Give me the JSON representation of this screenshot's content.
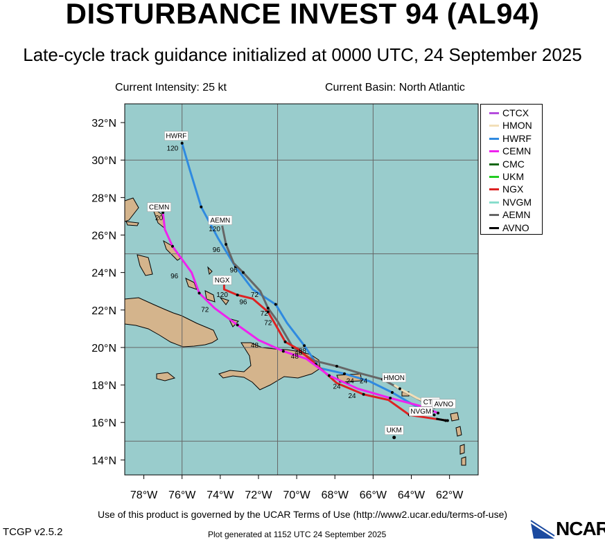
{
  "header": {
    "title": "DISTURBANCE INVEST 94 (AL94)",
    "subtitle": "Late-cycle track guidance initialized at 0000 UTC, 24 September 2025",
    "intensity": "Current Intensity: 25 kt",
    "basin": "Current Basin: North Atlantic"
  },
  "map": {
    "lat_labels": [
      "32°N",
      "30°N",
      "28°N",
      "26°N",
      "24°N",
      "22°N",
      "20°N",
      "18°N",
      "16°N",
      "14°N"
    ],
    "lon_labels": [
      "78°W",
      "76°W",
      "74°W",
      "72°W",
      "70°W",
      "68°W",
      "66°W",
      "64°W",
      "62°W"
    ],
    "extent": {
      "lon_min": -79,
      "lon_max": -60.5,
      "lat_min": 13.2,
      "lat_max": 33
    },
    "ocean_color": "#99cccc",
    "land_color": "#d4b48c",
    "grid_lons": [
      -76,
      -71,
      -66
    ],
    "grid_lats": [
      15,
      20,
      25,
      30
    ]
  },
  "legend": [
    {
      "name": "CTCX",
      "color": "#b44ddd"
    },
    {
      "name": "HMON",
      "color": "#f2dfb8"
    },
    {
      "name": "HWRF",
      "color": "#2f8ae0"
    },
    {
      "name": "CEMN",
      "color": "#ee22ee"
    },
    {
      "name": "CMC",
      "color": "#116611"
    },
    {
      "name": "UKM",
      "color": "#22cc22"
    },
    {
      "name": "NGX",
      "color": "#dd2222"
    },
    {
      "name": "NVGM",
      "color": "#88ddcc"
    },
    {
      "name": "AEMN",
      "color": "#666666"
    },
    {
      "name": "AVNO",
      "color": "#000000"
    }
  ],
  "tracks": [
    {
      "name": "HWRF",
      "color": "#2f8ae0",
      "pts": [
        [
          -62.8,
          16.4
        ],
        [
          -64,
          17
        ],
        [
          -65,
          17.6
        ],
        [
          -66.2,
          18.2
        ],
        [
          -67.5,
          18.6
        ],
        [
          -68.8,
          18.9
        ],
        [
          -69.6,
          20.1
        ],
        [
          -70.5,
          21.3
        ],
        [
          -71.1,
          22.3
        ],
        [
          -72.3,
          23.1
        ],
        [
          -73.2,
          24.3
        ],
        [
          -74.1,
          25.8
        ],
        [
          -75,
          27.5
        ],
        [
          -75.6,
          29.5
        ],
        [
          -76,
          30.9
        ]
      ]
    },
    {
      "name": "AEMN",
      "color": "#666666",
      "pts": [
        [
          -62.8,
          16.8
        ],
        [
          -64.1,
          17.5
        ],
        [
          -65.5,
          18.3
        ],
        [
          -66.6,
          18.6
        ],
        [
          -67.9,
          19
        ],
        [
          -69.1,
          19.3
        ],
        [
          -70.2,
          20
        ],
        [
          -71,
          21.4
        ],
        [
          -71.5,
          22.1
        ],
        [
          -71.9,
          23
        ],
        [
          -72.8,
          24
        ],
        [
          -73.3,
          24.5
        ],
        [
          -73.7,
          25.5
        ],
        [
          -73.9,
          26.5
        ]
      ]
    },
    {
      "name": "NGX",
      "color": "#dd2222",
      "pts": [
        [
          -62.1,
          16.1
        ],
        [
          -62.8,
          16.2
        ],
        [
          -64.1,
          16.4
        ],
        [
          -65.2,
          17.2
        ],
        [
          -66.5,
          17.5
        ],
        [
          -67.9,
          18.1
        ],
        [
          -69,
          19.1
        ],
        [
          -69.9,
          19.9
        ],
        [
          -70.6,
          20.3
        ],
        [
          -71.1,
          21.2
        ],
        [
          -71.5,
          21.9
        ],
        [
          -72.3,
          22.6
        ],
        [
          -73.1,
          22.8
        ],
        [
          -73.8,
          23.1
        ],
        [
          -73.8,
          23.4
        ]
      ]
    },
    {
      "name": "CEMN",
      "color": "#ee22ee",
      "pts": [
        [
          -62.6,
          16.5
        ],
        [
          -63.6,
          16.9
        ],
        [
          -65.1,
          17.3
        ],
        [
          -66.8,
          17.8
        ],
        [
          -68.3,
          18.5
        ],
        [
          -69.5,
          19.4
        ],
        [
          -70.7,
          19.8
        ],
        [
          -72,
          20.4
        ],
        [
          -73.1,
          21.2
        ],
        [
          -74.3,
          22.1
        ],
        [
          -75.1,
          22.9
        ],
        [
          -75.5,
          24
        ],
        [
          -76.5,
          25.4
        ],
        [
          -76.9,
          26.3
        ],
        [
          -77,
          27.2
        ]
      ]
    },
    {
      "name": "AVNO",
      "color": "#000000",
      "pts": [
        [
          -62.2,
          16.1
        ],
        [
          -62.7,
          16.2
        ]
      ]
    },
    {
      "name": "CTCX",
      "color": "#b44ddd",
      "pts": [
        [
          -62.8,
          16.8
        ],
        [
          -63.3,
          16.9
        ]
      ]
    },
    {
      "name": "HMON",
      "color": "#f2dfb8",
      "pts": [
        [
          -62.8,
          16.9
        ],
        [
          -63.7,
          17.3
        ],
        [
          -64.6,
          17.8
        ],
        [
          -64.9,
          18
        ]
      ]
    },
    {
      "name": "NVGM",
      "color": "#88ddcc",
      "pts": [
        [
          -62.9,
          16.6
        ],
        [
          -63.3,
          16.6
        ]
      ]
    }
  ],
  "track_labels": [
    {
      "text": "HWRF",
      "lon": -76.3,
      "lat": 31.2
    },
    {
      "text": "CEMN",
      "lon": -77.2,
      "lat": 27.4
    },
    {
      "text": "AEMN",
      "lon": -74,
      "lat": 26.7
    },
    {
      "text": "NGX",
      "lon": -73.9,
      "lat": 23.5
    },
    {
      "text": "HMON",
      "lon": -64.9,
      "lat": 18.3
    },
    {
      "text": "CTC",
      "lon": -63.0,
      "lat": 17.0
    },
    {
      "text": "AVNO",
      "lon": -62.3,
      "lat": 16.9
    },
    {
      "text": "NVGM",
      "lon": -63.5,
      "lat": 16.5
    },
    {
      "text": "UKM",
      "lon": -64.9,
      "lat": 15.5
    }
  ],
  "hour_labels": [
    {
      "text": "120",
      "lon": -76.5,
      "lat": 30.5
    },
    {
      "text": "120",
      "lon": -74.3,
      "lat": 26.2
    },
    {
      "text": "96",
      "lon": -74.2,
      "lat": 25.1
    },
    {
      "text": "96",
      "lon": -73.3,
      "lat": 24.0
    },
    {
      "text": "120",
      "lon": -73.9,
      "lat": 22.7
    },
    {
      "text": "96",
      "lon": -72.8,
      "lat": 22.3
    },
    {
      "text": "72",
      "lon": -72.2,
      "lat": 22.7
    },
    {
      "text": "72",
      "lon": -71.7,
      "lat": 21.7
    },
    {
      "text": "72",
      "lon": -71.5,
      "lat": 21.2
    },
    {
      "text": "96",
      "lon": -76.4,
      "lat": 23.7
    },
    {
      "text": "72",
      "lon": -74.8,
      "lat": 21.9
    },
    {
      "text": "20",
      "lon": -77.2,
      "lat": 26.8
    },
    {
      "text": "48",
      "lon": -72.2,
      "lat": 20.0
    },
    {
      "text": "48",
      "lon": -69.9,
      "lat": 19.6
    },
    {
      "text": "88",
      "lon": -69.7,
      "lat": 19.7
    },
    {
      "text": "48",
      "lon": -70.1,
      "lat": 19.4
    },
    {
      "text": "24",
      "lon": -67.9,
      "lat": 17.8
    },
    {
      "text": "24",
      "lon": -67.2,
      "lat": 18.1
    },
    {
      "text": "24",
      "lon": -66.5,
      "lat": 18.1
    },
    {
      "text": "24",
      "lon": -67.1,
      "lat": 17.3
    }
  ],
  "footer": {
    "terms": "Use of this product is governed by the UCAR Terms of Use (http://www2.ucar.edu/terms-of-use)",
    "version": "TCGP v2.5.2",
    "generated": "Plot generated at 1152 UTC  24 September 2025",
    "logo": "NCAR"
  }
}
